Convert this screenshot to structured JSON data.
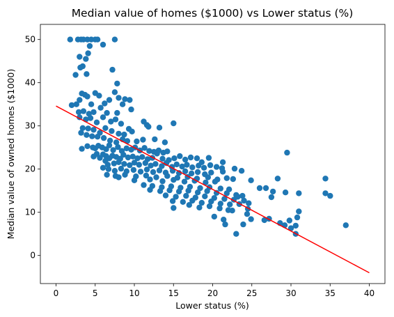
{
  "chart_data": {
    "type": "scatter",
    "title": "Median value of homes ($1000) vs Lower status (%)",
    "xlabel": "Lower status (%)",
    "ylabel": "Median value of owned homes ($1000)",
    "xlim": [
      -2,
      42
    ],
    "ylim": [
      -6.5,
      53.5
    ],
    "xticks": [
      0,
      5,
      10,
      15,
      20,
      25,
      30,
      35,
      40
    ],
    "yticks": [
      0,
      10,
      20,
      30,
      40,
      50
    ],
    "grid": false,
    "colors": {
      "points": "#1f77b4",
      "line": "#ff0000"
    },
    "series": [
      {
        "kind": "points",
        "points": [
          [
            1.8,
            50
          ],
          [
            2.8,
            50
          ],
          [
            3.2,
            50
          ],
          [
            3.5,
            50
          ],
          [
            4.0,
            50
          ],
          [
            4.5,
            50
          ],
          [
            5.0,
            50
          ],
          [
            5.3,
            50
          ],
          [
            7.5,
            50
          ],
          [
            3.0,
            46
          ],
          [
            3.8,
            45.5
          ],
          [
            4.1,
            46.8
          ],
          [
            4.3,
            48.5
          ],
          [
            6.0,
            48.8
          ],
          [
            7.2,
            43
          ],
          [
            2.5,
            41.8
          ],
          [
            3.4,
            43.8
          ],
          [
            3.1,
            43.5
          ],
          [
            3.9,
            42
          ],
          [
            7.8,
            39.8
          ],
          [
            8.8,
            36.2
          ],
          [
            9.4,
            36
          ],
          [
            2.0,
            34.8
          ],
          [
            2.6,
            35
          ],
          [
            3.0,
            36
          ],
          [
            3.3,
            37.5
          ],
          [
            3.7,
            37.2
          ],
          [
            4.0,
            36.8
          ],
          [
            4.5,
            35
          ],
          [
            5.0,
            37.6
          ],
          [
            5.5,
            37
          ],
          [
            6.2,
            35.2
          ],
          [
            6.8,
            36
          ],
          [
            7.5,
            37.8
          ],
          [
            8.0,
            36.5
          ],
          [
            8.5,
            35
          ],
          [
            2.9,
            33.2
          ],
          [
            3.5,
            33.4
          ],
          [
            4.2,
            32.8
          ],
          [
            4.8,
            33.2
          ],
          [
            5.7,
            34.2
          ],
          [
            6.5,
            33
          ],
          [
            7.8,
            33
          ],
          [
            9.6,
            33.8
          ],
          [
            3.0,
            32
          ],
          [
            3.8,
            31.5
          ],
          [
            4.4,
            31.8
          ],
          [
            5.2,
            30.8
          ],
          [
            6.0,
            32
          ],
          [
            7.0,
            31
          ],
          [
            7.6,
            31.5
          ],
          [
            8.3,
            30.5
          ],
          [
            3.4,
            29.5
          ],
          [
            4.1,
            29.4
          ],
          [
            4.8,
            29.1
          ],
          [
            5.6,
            28.4
          ],
          [
            6.3,
            29.5
          ],
          [
            7.1,
            28.8
          ],
          [
            8.0,
            28.2
          ],
          [
            8.7,
            28
          ],
          [
            9.3,
            29.3
          ],
          [
            9.7,
            28.7
          ],
          [
            11.2,
            31
          ],
          [
            11.6,
            30.2
          ],
          [
            11.8,
            29.8
          ],
          [
            13.2,
            29.6
          ],
          [
            15.0,
            30.6
          ],
          [
            3.2,
            28.4
          ],
          [
            3.9,
            27.9
          ],
          [
            4.6,
            27.6
          ],
          [
            5.3,
            27.5
          ],
          [
            6.1,
            27.2
          ],
          [
            6.9,
            26.6
          ],
          [
            7.7,
            26.2
          ],
          [
            8.5,
            26.9
          ],
          [
            9.1,
            26.5
          ],
          [
            10.3,
            26.4
          ],
          [
            11.1,
            26.8
          ],
          [
            12.6,
            26.9
          ],
          [
            13.9,
            26.2
          ],
          [
            3.3,
            24.7
          ],
          [
            4.0,
            25.3
          ],
          [
            4.7,
            25
          ],
          [
            5.0,
            24.8
          ],
          [
            5.4,
            25.4
          ],
          [
            5.9,
            25
          ],
          [
            6.4,
            24.6
          ],
          [
            6.8,
            25.5
          ],
          [
            7.3,
            24.4
          ],
          [
            7.9,
            25.1
          ],
          [
            8.4,
            24.2
          ],
          [
            9.0,
            24.8
          ],
          [
            9.6,
            24.5
          ],
          [
            10.1,
            25
          ],
          [
            10.7,
            24.3
          ],
          [
            11.3,
            24.9
          ],
          [
            11.9,
            24.2
          ],
          [
            12.5,
            24
          ],
          [
            13.1,
            24.3
          ],
          [
            13.7,
            23.8
          ],
          [
            14.2,
            24.1
          ],
          [
            4.8,
            22.9
          ],
          [
            5.2,
            23.5
          ],
          [
            5.6,
            22.6
          ],
          [
            6.0,
            23.4
          ],
          [
            6.4,
            23
          ],
          [
            6.8,
            22.5
          ],
          [
            7.2,
            23.1
          ],
          [
            7.7,
            22.8
          ],
          [
            8.2,
            22.4
          ],
          [
            8.6,
            23.3
          ],
          [
            9.2,
            22.7
          ],
          [
            9.8,
            22.9
          ],
          [
            10.4,
            22.5
          ],
          [
            11.0,
            22.8
          ],
          [
            11.7,
            22.3
          ],
          [
            12.3,
            22.6
          ],
          [
            12.9,
            23.6
          ],
          [
            13.6,
            22.4
          ],
          [
            14.4,
            22.1
          ],
          [
            15.1,
            22.5
          ],
          [
            15.8,
            23
          ],
          [
            16.5,
            22.2
          ],
          [
            17.2,
            22.7
          ],
          [
            18.0,
            22.5
          ],
          [
            18.6,
            21.6
          ],
          [
            19.5,
            22.6
          ],
          [
            21.3,
            21.6
          ],
          [
            6.3,
            21.9
          ],
          [
            6.6,
            21
          ],
          [
            7.4,
            21.3
          ],
          [
            8.0,
            21.6
          ],
          [
            8.7,
            21.2
          ],
          [
            9.4,
            20.9
          ],
          [
            10.0,
            21.5
          ],
          [
            10.6,
            21
          ],
          [
            11.4,
            21.4
          ],
          [
            12.1,
            20.8
          ],
          [
            12.7,
            21.2
          ],
          [
            13.5,
            20.7
          ],
          [
            14.1,
            21.4
          ],
          [
            14.8,
            20.5
          ],
          [
            15.4,
            21.1
          ],
          [
            16.1,
            20.6
          ],
          [
            16.7,
            21
          ],
          [
            17.4,
            20.4
          ],
          [
            18.2,
            20.8
          ],
          [
            18.9,
            20.3
          ],
          [
            19.7,
            20.9
          ],
          [
            20.5,
            20.5
          ],
          [
            21.2,
            20.2
          ],
          [
            22.8,
            20.1
          ],
          [
            23.7,
            19.6
          ],
          [
            6.0,
            20.3
          ],
          [
            6.7,
            20
          ],
          [
            7.5,
            19.6
          ],
          [
            8.3,
            20.1
          ],
          [
            9.0,
            19.5
          ],
          [
            9.9,
            19.8
          ],
          [
            10.8,
            19.4
          ],
          [
            11.6,
            19.9
          ],
          [
            12.4,
            19.3
          ],
          [
            13.2,
            19.7
          ],
          [
            14.0,
            19.2
          ],
          [
            14.9,
            19.6
          ],
          [
            15.7,
            19.1
          ],
          [
            16.5,
            19.5
          ],
          [
            17.3,
            19
          ],
          [
            18.1,
            19.3
          ],
          [
            19.0,
            18.8
          ],
          [
            19.8,
            19.2
          ],
          [
            21.3,
            19.4
          ],
          [
            6.5,
            18.7
          ],
          [
            7.6,
            18.4
          ],
          [
            8.8,
            18.7
          ],
          [
            10.2,
            18.3
          ],
          [
            11.5,
            18.5
          ],
          [
            12.8,
            18.1
          ],
          [
            14.2,
            18.4
          ],
          [
            15.5,
            18
          ],
          [
            16.8,
            18.2
          ],
          [
            18.0,
            17.8
          ],
          [
            19.4,
            18.1
          ],
          [
            20.6,
            17.6
          ],
          [
            21.8,
            17.9
          ],
          [
            22.6,
            17.7
          ],
          [
            8.0,
            18.1
          ],
          [
            10.0,
            17.4
          ],
          [
            12.0,
            17.6
          ],
          [
            13.6,
            17.2
          ],
          [
            15.0,
            17.5
          ],
          [
            16.4,
            17.1
          ],
          [
            17.7,
            17.3
          ],
          [
            19.1,
            16.9
          ],
          [
            20.3,
            17.1
          ],
          [
            24.9,
            17.4
          ],
          [
            26.0,
            15.6
          ],
          [
            26.8,
            15.6
          ],
          [
            27.5,
            13.5
          ],
          [
            27.7,
            14.8
          ],
          [
            28.3,
            17.8
          ],
          [
            29.3,
            14.6
          ],
          [
            29.5,
            23.8
          ],
          [
            31.0,
            14.4
          ],
          [
            11.2,
            16.3
          ],
          [
            12.3,
            16.1
          ],
          [
            13.5,
            15.8
          ],
          [
            14.7,
            16
          ],
          [
            15.9,
            15.7
          ],
          [
            17.1,
            15.9
          ],
          [
            18.4,
            15.6
          ],
          [
            19.6,
            15.8
          ],
          [
            21.0,
            15.5
          ],
          [
            22.1,
            15.3
          ],
          [
            12.0,
            15.2
          ],
          [
            13.3,
            14.9
          ],
          [
            14.5,
            15.1
          ],
          [
            15.7,
            14.8
          ],
          [
            16.9,
            15
          ],
          [
            18.1,
            14.6
          ],
          [
            19.3,
            14.9
          ],
          [
            20.5,
            14.5
          ],
          [
            21.8,
            14.4
          ],
          [
            23.0,
            14
          ],
          [
            14.0,
            13.9
          ],
          [
            15.3,
            13.6
          ],
          [
            16.6,
            13.8
          ],
          [
            17.8,
            13.4
          ],
          [
            19.0,
            13.7
          ],
          [
            20.2,
            13.3
          ],
          [
            21.5,
            13.1
          ],
          [
            22.7,
            12.9
          ],
          [
            23.2,
            13.6
          ],
          [
            24.0,
            12.7
          ],
          [
            24.6,
            12.1
          ],
          [
            23.8,
            13.8
          ],
          [
            14.9,
            12.6
          ],
          [
            16.2,
            12.4
          ],
          [
            17.4,
            12.7
          ],
          [
            18.6,
            12.2
          ],
          [
            19.8,
            12.5
          ],
          [
            21.0,
            12
          ],
          [
            22.2,
            11.8
          ],
          [
            23.4,
            11.9
          ],
          [
            24.5,
            10.8
          ],
          [
            15.0,
            11
          ],
          [
            17.0,
            11.7
          ],
          [
            18.3,
            11.1
          ],
          [
            19.6,
            11.4
          ],
          [
            20.9,
            10.9
          ],
          [
            22.0,
            10.5
          ],
          [
            22.5,
            10.4
          ],
          [
            24.4,
            9.6
          ],
          [
            24.9,
            8.4
          ],
          [
            20.2,
            9
          ],
          [
            21.4,
            8.3
          ],
          [
            21.6,
            7.2
          ],
          [
            23.9,
            7.2
          ],
          [
            26.6,
            8.2
          ],
          [
            27.2,
            8.5
          ],
          [
            28.6,
            7.5
          ],
          [
            29.2,
            7
          ],
          [
            29.8,
            8.1
          ],
          [
            30.0,
            6.3
          ],
          [
            30.6,
            6.9
          ],
          [
            30.6,
            5
          ],
          [
            31.0,
            10.2
          ],
          [
            30.8,
            8.8
          ],
          [
            34.4,
            17.8
          ],
          [
            34.4,
            14.4
          ],
          [
            35.0,
            13.8
          ],
          [
            23.0,
            5
          ],
          [
            37.0,
            7
          ]
        ]
      },
      {
        "kind": "regression_line",
        "points": [
          [
            0,
            34.6
          ],
          [
            40,
            -4.0
          ]
        ]
      }
    ]
  }
}
